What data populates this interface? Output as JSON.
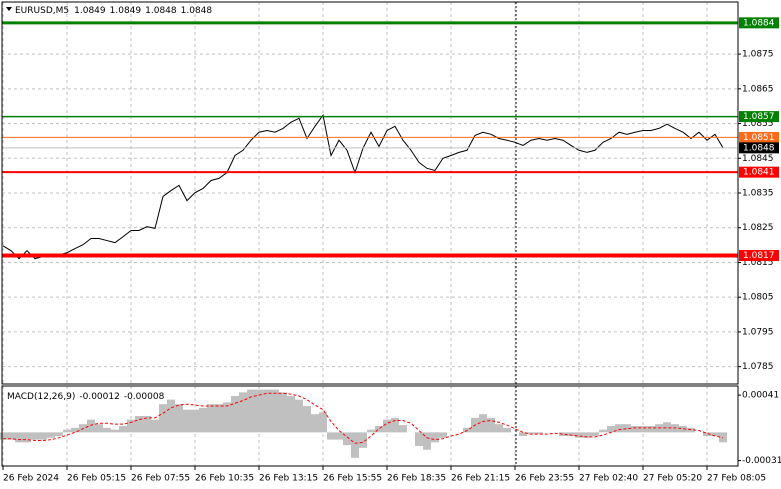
{
  "chart_data": [
    {
      "type": "line",
      "title": "EURUSD,M5",
      "ohlc": [
        1.0849,
        1.0849,
        1.0848,
        1.0848
      ],
      "color": "#000000",
      "grid": true,
      "categories": [
        "26 Feb 2024",
        null,
        null,
        null,
        null,
        null,
        null,
        null,
        "26 Feb 05:15",
        null,
        null,
        null,
        null,
        null,
        null,
        null,
        "26 Feb 07:55",
        null,
        null,
        null,
        null,
        null,
        null,
        null,
        "26 Feb 10:35",
        null,
        null,
        null,
        null,
        null,
        null,
        null,
        "26 Feb 13:15",
        null,
        null,
        null,
        null,
        null,
        null,
        null,
        "26 Feb 15:55",
        null,
        null,
        null,
        null,
        null,
        null,
        null,
        "26 Feb 18:35",
        null,
        null,
        null,
        null,
        null,
        null,
        null,
        "26 Feb 21:15",
        null,
        null,
        null,
        null,
        null,
        null,
        null,
        "26 Feb 23:55",
        null,
        null,
        null,
        null,
        null,
        null,
        null,
        "27 Feb 02:40",
        null,
        null,
        null,
        null,
        null,
        null,
        null,
        "27 Feb 05:20",
        null,
        null,
        null,
        null,
        null,
        null,
        null,
        "27 Feb 08:05",
        null,
        null
      ],
      "values": [
        1.08198,
        1.08184,
        1.08161,
        1.08184,
        1.08161,
        1.08167,
        1.08167,
        1.08172,
        1.08178,
        1.0819,
        1.08201,
        1.08219,
        1.08219,
        1.08213,
        1.08207,
        1.08224,
        1.08242,
        1.08242,
        1.08253,
        1.08248,
        1.0834,
        1.08357,
        1.08372,
        1.08328,
        1.08351,
        1.08363,
        1.08386,
        1.08392,
        1.08409,
        1.08458,
        1.08473,
        1.08502,
        1.08525,
        1.0853,
        1.08525,
        1.08536,
        1.08554,
        1.08565,
        1.08507,
        1.08542,
        1.08574,
        1.08458,
        1.08502,
        1.08473,
        1.08409,
        1.08479,
        1.08525,
        1.08484,
        1.0853,
        1.08542,
        1.08502,
        1.08473,
        1.08438,
        1.08421,
        1.08415,
        1.0845,
        1.08458,
        1.08467,
        1.08473,
        1.08516,
        1.08525,
        1.08519,
        1.08507,
        1.08502,
        1.08496,
        1.08487,
        1.08502,
        1.08507,
        1.08502,
        1.08507,
        1.08502,
        1.08487,
        1.08473,
        1.08467,
        1.08473,
        1.08496,
        1.08507,
        1.08525,
        1.08519,
        1.08525,
        1.0853,
        1.0853,
        1.08536,
        1.08548,
        1.08536,
        1.08525,
        1.08507,
        1.08525,
        1.08502,
        1.08519,
        1.0848
      ],
      "ylim": [
        1.078,
        1.089
      ],
      "yticks": [
        1.0875,
        1.0865,
        1.0855,
        1.0845,
        1.0835,
        1.0825,
        1.0815,
        1.0805,
        1.0795,
        1.0785
      ],
      "levels": [
        {
          "value": 1.0884,
          "color": "#008000",
          "line_width": 3
        },
        {
          "value": 1.0857,
          "color": "#008000",
          "line_width": 1.5
        },
        {
          "value": 1.0851,
          "color": "#ff6a1a",
          "line_width": 1
        },
        {
          "value": 1.0848,
          "color": "#c0c0c0",
          "label_color": "#000000",
          "line_width": 1
        },
        {
          "value": 1.0841,
          "color": "#ff0000",
          "line_width": 2
        },
        {
          "value": 1.0817,
          "color": "#ff0000",
          "line_width": 4
        }
      ]
    },
    {
      "type": "macd",
      "title": "MACD(12,26,9)",
      "indicator_values": [
        -0.00012,
        -8e-05
      ],
      "histogram_color": "#c0c0c0",
      "signal_color": "#ff0000",
      "histogram": [
        -8e-05,
        -8e-05,
        -0.00011,
        -0.00011,
        -8e-05,
        -8e-05,
        -6e-05,
        -4e-05,
        3e-05,
        5e-05,
        9e-05,
        0.00014,
        9e-05,
        5e-05,
        3e-05,
        7e-05,
        0.00014,
        0.00018,
        0.00018,
        0.00014,
        0.00031,
        0.00036,
        0.00031,
        0.00025,
        0.00025,
        0.00027,
        0.00031,
        0.00031,
        0.00033,
        0.0004,
        0.00044,
        0.00047,
        0.00047,
        0.00047,
        0.00047,
        0.00044,
        0.0004,
        0.00036,
        0.00029,
        0.0002,
        0.00022,
        -8e-05,
        -8e-05,
        -0.00014,
        -0.00028,
        -0.00017,
        3e-05,
        7e-05,
        0.00014,
        0.00016,
        8e-05,
        0,
        -0.00015,
        -0.00019,
        -0.00011,
        -6e-05,
        0,
        0,
        5e-05,
        0.00016,
        0.0002,
        0.00016,
        9e-05,
        5e-05,
        0,
        -4e-05,
        -2e-05,
        -2e-05,
        0,
        0,
        -4e-05,
        -4e-05,
        -6e-05,
        -6e-05,
        -4e-05,
        3e-05,
        7e-05,
        9e-05,
        9e-05,
        7e-05,
        7e-05,
        7e-05,
        9e-05,
        0.00011,
        9e-05,
        7e-05,
        5e-05,
        0,
        -4e-05,
        -4e-05,
        -0.00011
      ],
      "signal": [
        -7e-05,
        -7e-05,
        -8e-05,
        -8e-05,
        -9e-05,
        -9e-05,
        -8e-05,
        -6e-05,
        -3e-05,
        0,
        4e-05,
        8e-05,
        0.0001,
        0.0001,
        9e-05,
        9e-05,
        0.00011,
        0.00014,
        0.00016,
        0.00016,
        0.00021,
        0.00027,
        0.0003,
        0.00031,
        0.0003,
        0.00029,
        0.00029,
        0.00029,
        0.00029,
        0.00032,
        0.00035,
        0.00039,
        0.00041,
        0.00043,
        0.00043,
        0.00043,
        0.00042,
        0.0004,
        0.00036,
        0.0003,
        0.00025,
        0.00012,
        2e-05,
        -5e-05,
        -0.00012,
        -0.00011,
        -4e-05,
        4e-05,
        0.0001,
        0.00013,
        0.00013,
        0.0001,
        2e-05,
        -6e-05,
        -8e-05,
        -7e-05,
        -4e-05,
        -2e-05,
        2e-05,
        8e-05,
        0.00012,
        0.00013,
        0.00011,
        8e-05,
        4e-05,
        0,
        -2e-05,
        -2e-05,
        -2e-05,
        -1e-05,
        -2e-05,
        -3e-05,
        -4e-05,
        -5e-05,
        -5e-05,
        -3e-05,
        0,
        3e-05,
        4e-05,
        5e-05,
        5e-05,
        5e-05,
        5e-05,
        5e-05,
        5e-05,
        4e-05,
        3e-05,
        2e-05,
        -1e-05,
        -4e-05,
        -6e-05
      ],
      "ylim": [
        -0.00037,
        0.00051
      ],
      "yticks": [
        0.00041,
        -0.00031
      ]
    }
  ]
}
